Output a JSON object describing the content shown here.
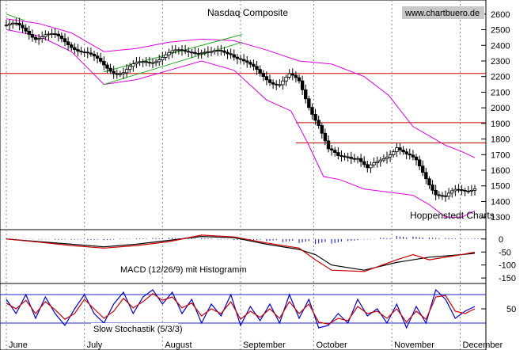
{
  "chart_data": [
    {
      "type": "candlestick",
      "title": "Nasdaq Composite",
      "watermark": "www.chartbuero.de",
      "credit": "Hoppenstedt Charts",
      "ylim": [
        1240,
        2660
      ],
      "y_ticks": [
        "2600",
        "2500",
        "2400",
        "2300",
        "2200",
        "2100",
        "2000",
        "1900",
        "1800",
        "1700",
        "1600",
        "1500",
        "1400",
        "1300"
      ],
      "x_ticks": [
        "June",
        "July",
        "August",
        "September",
        "October",
        "November",
        "December"
      ],
      "horizontal_lines": [
        2220,
        1905,
        1775
      ],
      "colors": {
        "price": "#000000",
        "bollinger": "#dd00dd",
        "hlines": "#cc0000",
        "trend": "#22aa22",
        "grid": "#888888"
      },
      "close_points": [
        [
          0,
          2530
        ],
        [
          12,
          2520
        ],
        [
          24,
          2490
        ],
        [
          36,
          2460
        ],
        [
          48,
          2470
        ],
        [
          60,
          2450
        ],
        [
          72,
          2420
        ],
        [
          84,
          2395
        ],
        [
          96,
          2360
        ],
        [
          108,
          2310
        ],
        [
          120,
          2270
        ],
        [
          132,
          2240
        ],
        [
          144,
          2230
        ],
        [
          156,
          2260
        ],
        [
          168,
          2290
        ],
        [
          180,
          2310
        ],
        [
          192,
          2330
        ],
        [
          204,
          2345
        ],
        [
          216,
          2360
        ],
        [
          228,
          2375
        ],
        [
          240,
          2360
        ],
        [
          252,
          2340
        ],
        [
          264,
          2355
        ],
        [
          276,
          2360
        ],
        [
          288,
          2320
        ],
        [
          300,
          2260
        ],
        [
          312,
          2210
        ],
        [
          324,
          2180
        ],
        [
          336,
          2160
        ],
        [
          348,
          2200
        ],
        [
          360,
          2160
        ],
        [
          372,
          2020
        ],
        [
          384,
          1900
        ],
        [
          396,
          1720
        ],
        [
          408,
          1680
        ],
        [
          420,
          1700
        ],
        [
          432,
          1690
        ],
        [
          444,
          1600
        ],
        [
          456,
          1640
        ],
        [
          468,
          1700
        ],
        [
          480,
          1760
        ],
        [
          492,
          1690
        ],
        [
          504,
          1650
        ],
        [
          516,
          1560
        ],
        [
          528,
          1460
        ],
        [
          540,
          1420
        ],
        [
          552,
          1460
        ],
        [
          564,
          1480
        ],
        [
          576,
          1500
        ]
      ],
      "upper_band": [
        [
          0,
          2570
        ],
        [
          40,
          2540
        ],
        [
          80,
          2480
        ],
        [
          120,
          2360
        ],
        [
          160,
          2380
        ],
        [
          200,
          2420
        ],
        [
          240,
          2440
        ],
        [
          280,
          2430
        ],
        [
          320,
          2370
        ],
        [
          360,
          2300
        ],
        [
          400,
          2280
        ],
        [
          440,
          2200
        ],
        [
          470,
          2080
        ],
        [
          500,
          1880
        ],
        [
          520,
          1820
        ],
        [
          540,
          1760
        ],
        [
          560,
          1720
        ],
        [
          576,
          1680
        ]
      ],
      "lower_band": [
        [
          0,
          2500
        ],
        [
          40,
          2460
        ],
        [
          80,
          2360
        ],
        [
          120,
          2150
        ],
        [
          160,
          2180
        ],
        [
          200,
          2240
        ],
        [
          240,
          2300
        ],
        [
          280,
          2240
        ],
        [
          320,
          2050
        ],
        [
          350,
          1980
        ],
        [
          370,
          1780
        ],
        [
          390,
          1560
        ],
        [
          410,
          1540
        ],
        [
          440,
          1480
        ],
        [
          470,
          1460
        ],
        [
          500,
          1440
        ],
        [
          520,
          1380
        ],
        [
          540,
          1300
        ],
        [
          560,
          1300
        ],
        [
          576,
          1340
        ]
      ],
      "trend_lines": [
        [
          [
            0,
            2600
          ],
          [
            22,
            2560
          ]
        ],
        [
          [
            120,
            2150
          ],
          [
            290,
            2420
          ]
        ],
        [
          [
            120,
            2230
          ],
          [
            290,
            2470
          ]
        ]
      ]
    },
    {
      "type": "line",
      "title": "MACD (12/26/9) mit Histogramm",
      "ylim": [
        -165,
        30
      ],
      "y_ticks": [
        "0",
        "-50",
        "-100",
        "-150"
      ],
      "series": [
        {
          "name": "MACD",
          "color": "#000000",
          "points": [
            [
              0,
              0
            ],
            [
              40,
              -10
            ],
            [
              80,
              -20
            ],
            [
              120,
              -30
            ],
            [
              160,
              -20
            ],
            [
              200,
              -5
            ],
            [
              240,
              10
            ],
            [
              280,
              5
            ],
            [
              320,
              -20
            ],
            [
              360,
              -40
            ],
            [
              380,
              -60
            ],
            [
              400,
              -100
            ],
            [
              440,
              -120
            ],
            [
              480,
              -90
            ],
            [
              520,
              -70
            ],
            [
              560,
              -60
            ],
            [
              576,
              -55
            ]
          ]
        },
        {
          "name": "Signal",
          "color": "#cc0000",
          "points": [
            [
              0,
              0
            ],
            [
              40,
              -12
            ],
            [
              80,
              -25
            ],
            [
              120,
              -35
            ],
            [
              160,
              -25
            ],
            [
              200,
              -10
            ],
            [
              240,
              15
            ],
            [
              280,
              8
            ],
            [
              320,
              -15
            ],
            [
              360,
              -35
            ],
            [
              380,
              -80
            ],
            [
              400,
              -120
            ],
            [
              440,
              -125
            ],
            [
              480,
              -80
            ],
            [
              500,
              -60
            ],
            [
              520,
              -80
            ],
            [
              560,
              -60
            ],
            [
              576,
              -50
            ]
          ]
        }
      ],
      "histogram_color": "#3333cc",
      "histogram": [
        [
          0,
          2
        ],
        [
          20,
          1
        ],
        [
          40,
          -2
        ],
        [
          60,
          -3
        ],
        [
          80,
          -3
        ],
        [
          100,
          -4
        ],
        [
          120,
          -4
        ],
        [
          140,
          2
        ],
        [
          160,
          3
        ],
        [
          180,
          4
        ],
        [
          200,
          5
        ],
        [
          220,
          6
        ],
        [
          240,
          4
        ],
        [
          260,
          -2
        ],
        [
          280,
          -4
        ],
        [
          300,
          -5
        ],
        [
          320,
          -8
        ],
        [
          340,
          -12
        ],
        [
          360,
          -15
        ],
        [
          380,
          -20
        ],
        [
          400,
          -18
        ],
        [
          420,
          -8
        ],
        [
          440,
          -2
        ],
        [
          460,
          5
        ],
        [
          480,
          12
        ],
        [
          500,
          10
        ],
        [
          520,
          6
        ],
        [
          540,
          4
        ],
        [
          560,
          2
        ],
        [
          576,
          3
        ]
      ]
    },
    {
      "type": "line",
      "title": "Slow Stochastik (5/3/3)",
      "ylim": [
        0,
        100
      ],
      "y_ticks": [
        "50"
      ],
      "reference_lines": [
        80,
        20
      ],
      "series": [
        {
          "name": "%K",
          "color": "#0000cc",
          "points": [
            [
              0,
              70
            ],
            [
              12,
              40
            ],
            [
              24,
              80
            ],
            [
              36,
              30
            ],
            [
              48,
              75
            ],
            [
              60,
              40
            ],
            [
              72,
              15
            ],
            [
              84,
              50
            ],
            [
              96,
              80
            ],
            [
              108,
              40
            ],
            [
              120,
              20
            ],
            [
              132,
              60
            ],
            [
              144,
              85
            ],
            [
              156,
              40
            ],
            [
              168,
              75
            ],
            [
              180,
              90
            ],
            [
              192,
              60
            ],
            [
              204,
              85
            ],
            [
              216,
              40
            ],
            [
              228,
              70
            ],
            [
              240,
              20
            ],
            [
              252,
              60
            ],
            [
              264,
              35
            ],
            [
              276,
              80
            ],
            [
              288,
              15
            ],
            [
              300,
              55
            ],
            [
              312,
              25
            ],
            [
              324,
              60
            ],
            [
              336,
              20
            ],
            [
              348,
              80
            ],
            [
              360,
              30
            ],
            [
              372,
              70
            ],
            [
              384,
              10
            ],
            [
              396,
              15
            ],
            [
              408,
              40
            ],
            [
              420,
              20
            ],
            [
              432,
              70
            ],
            [
              444,
              35
            ],
            [
              456,
              50
            ],
            [
              468,
              20
            ],
            [
              480,
              60
            ],
            [
              492,
              10
            ],
            [
              504,
              55
            ],
            [
              516,
              20
            ],
            [
              528,
              90
            ],
            [
              540,
              70
            ],
            [
              552,
              30
            ],
            [
              564,
              45
            ],
            [
              576,
              55
            ]
          ]
        },
        {
          "name": "%D",
          "color": "#cc0000",
          "points": [
            [
              0,
              62
            ],
            [
              12,
              50
            ],
            [
              24,
              68
            ],
            [
              36,
              40
            ],
            [
              48,
              65
            ],
            [
              60,
              48
            ],
            [
              72,
              28
            ],
            [
              84,
              40
            ],
            [
              96,
              70
            ],
            [
              108,
              50
            ],
            [
              120,
              30
            ],
            [
              132,
              45
            ],
            [
              144,
              72
            ],
            [
              156,
              52
            ],
            [
              168,
              65
            ],
            [
              180,
              82
            ],
            [
              192,
              68
            ],
            [
              204,
              75
            ],
            [
              216,
              52
            ],
            [
              228,
              62
            ],
            [
              240,
              35
            ],
            [
              252,
              50
            ],
            [
              264,
              40
            ],
            [
              276,
              65
            ],
            [
              288,
              28
            ],
            [
              300,
              45
            ],
            [
              312,
              32
            ],
            [
              324,
              50
            ],
            [
              336,
              30
            ],
            [
              348,
              65
            ],
            [
              360,
              40
            ],
            [
              372,
              60
            ],
            [
              384,
              22
            ],
            [
              396,
              18
            ],
            [
              408,
              30
            ],
            [
              420,
              25
            ],
            [
              432,
              55
            ],
            [
              444,
              40
            ],
            [
              456,
              45
            ],
            [
              468,
              30
            ],
            [
              480,
              50
            ],
            [
              492,
              22
            ],
            [
              504,
              45
            ],
            [
              516,
              28
            ],
            [
              528,
              75
            ],
            [
              540,
              78
            ],
            [
              552,
              45
            ],
            [
              564,
              40
            ],
            [
              576,
              50
            ]
          ]
        }
      ]
    }
  ]
}
